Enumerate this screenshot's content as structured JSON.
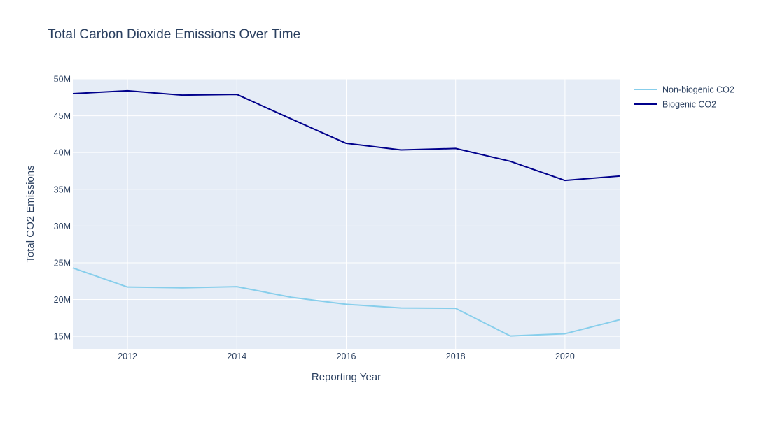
{
  "chart_data": {
    "type": "line",
    "title": "Total Carbon Dioxide Emissions Over Time",
    "xlabel": "Reporting Year",
    "ylabel": "Total CO2 Emissions",
    "x": [
      2011,
      2012,
      2013,
      2014,
      2015,
      2016,
      2017,
      2018,
      2019,
      2020,
      2021
    ],
    "xlim": [
      2011,
      2021
    ],
    "ylim": [
      13300000,
      50000000
    ],
    "x_ticks": [
      2012,
      2014,
      2016,
      2018,
      2020
    ],
    "x_tick_labels": [
      "2012",
      "2014",
      "2016",
      "2018",
      "2020"
    ],
    "y_ticks": [
      15000000,
      20000000,
      25000000,
      30000000,
      35000000,
      40000000,
      45000000,
      50000000
    ],
    "y_tick_labels": [
      "15M",
      "20M",
      "25M",
      "30M",
      "35M",
      "40M",
      "45M",
      "50M"
    ],
    "grid": true,
    "legend_position": "top-right",
    "plot_background": "#e5ecf6",
    "series": [
      {
        "name": "Non-biogenic CO2",
        "color": "#87ceeb",
        "values": [
          24300000,
          21700000,
          21600000,
          21750000,
          20300000,
          19350000,
          18850000,
          18800000,
          15050000,
          15350000,
          17250000
        ]
      },
      {
        "name": "Biogenic CO2",
        "color": "#00008b",
        "values": [
          48000000,
          48400000,
          47800000,
          47900000,
          44550000,
          41250000,
          40350000,
          40550000,
          38800000,
          36200000,
          36800000
        ]
      }
    ]
  }
}
